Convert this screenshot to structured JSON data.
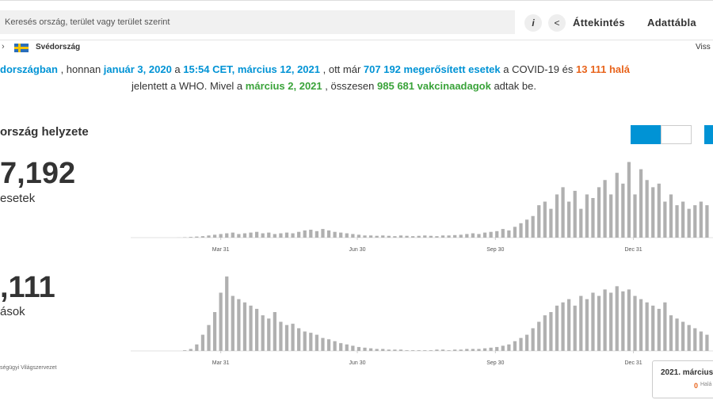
{
  "search": {
    "placeholder": "Keresés ország, terület vagy terület szerint"
  },
  "nav": {
    "overview": "Áttekintés",
    "table": "Adattábla",
    "back": "Viss"
  },
  "breadcrumb": {
    "country": "Svédország"
  },
  "summary": {
    "line1": [
      {
        "text": "dországban",
        "color": "#0093d5"
      },
      {
        "text": " , honnan ",
        "color": "#333333"
      },
      {
        "text": "január 3, 2020",
        "color": "#0093d5"
      },
      {
        "text": " a ",
        "color": "#333333"
      },
      {
        "text": "15:54 CET, március 12, 2021",
        "color": "#0093d5"
      },
      {
        "text": " , ott már ",
        "color": "#333333"
      },
      {
        "text": "707 192 megerősített esetek",
        "color": "#0093d5"
      },
      {
        "text": " a COVID-19 és ",
        "color": "#333333"
      },
      {
        "text": "13 111 halá",
        "color": "#e8641c"
      }
    ],
    "line2": [
      {
        "text": "jelentett a WHO. Mivel a ",
        "color": "#333333"
      },
      {
        "text": "március 2, 2021",
        "color": "#3aa33a"
      },
      {
        "text": " , összesen ",
        "color": "#333333"
      },
      {
        "text": "985 681 vakcinaadagok",
        "color": "#3aa33a"
      },
      {
        "text": " adtak be.",
        "color": "#333333"
      }
    ]
  },
  "panel": {
    "title": "ország helyzete",
    "cases_total": "7,192",
    "cases_label": "esetek",
    "deaths_total": ",111",
    "deaths_label": "ások",
    "source": "ségügyi Világszervezet",
    "tooltip_date": "2021. március",
    "tooltip_value": "0",
    "tooltip_label": "Halá"
  },
  "chart_data": [
    {
      "type": "bar",
      "color": "#b0b0b0",
      "xlim": [
        -7,
        90
      ],
      "ylim": [
        0,
        11000
      ],
      "xticks": [
        {
          "value": 8,
          "label": "Mar 31"
        },
        {
          "value": 30.75,
          "label": "Jun 30"
        },
        {
          "value": 53.75,
          "label": "Sep 30"
        },
        {
          "value": 76.75,
          "label": "Dec 31"
        }
      ],
      "values": [
        0,
        10,
        50,
        100,
        150,
        200,
        300,
        400,
        500,
        600,
        700,
        500,
        600,
        700,
        800,
        600,
        700,
        500,
        600,
        700,
        600,
        800,
        1000,
        1100,
        900,
        1200,
        1000,
        800,
        700,
        600,
        500,
        400,
        300,
        300,
        250,
        300,
        250,
        200,
        300,
        250,
        200,
        250,
        300,
        250,
        200,
        300,
        300,
        350,
        400,
        500,
        600,
        500,
        700,
        800,
        900,
        1200,
        1000,
        1500,
        2000,
        2500,
        3000,
        4500,
        5000,
        4000,
        6000,
        7000,
        5000,
        6500,
        4000,
        6000,
        5500,
        7000,
        8000,
        6000,
        9000,
        7500,
        10500,
        6000,
        9500,
        8000,
        7000,
        7500,
        5000,
        6000,
        4500,
        5000,
        4000,
        4500,
        5000,
        4500
      ]
    },
    {
      "type": "bar",
      "color": "#b0b0b0",
      "xlim": [
        -7,
        90
      ],
      "ylim": [
        0,
        120
      ],
      "xticks": [
        {
          "value": 8,
          "label": "Mar 31"
        },
        {
          "value": 30.75,
          "label": "Jun 30"
        },
        {
          "value": 53.75,
          "label": "Sep 30"
        },
        {
          "value": 76.75,
          "label": "Dec 31"
        }
      ],
      "values": [
        0,
        0,
        1,
        3,
        10,
        25,
        40,
        60,
        90,
        115,
        85,
        80,
        75,
        70,
        65,
        55,
        50,
        60,
        45,
        40,
        42,
        35,
        30,
        28,
        25,
        20,
        18,
        15,
        12,
        10,
        8,
        6,
        5,
        4,
        3,
        3,
        2,
        2,
        2,
        1,
        1,
        1,
        1,
        1,
        2,
        2,
        1,
        2,
        2,
        3,
        3,
        3,
        4,
        5,
        6,
        8,
        10,
        15,
        20,
        25,
        35,
        45,
        55,
        60,
        70,
        75,
        80,
        70,
        85,
        80,
        90,
        85,
        95,
        90,
        100,
        92,
        95,
        85,
        80,
        75,
        70,
        65,
        75,
        55,
        50,
        45,
        40,
        35,
        30,
        25
      ]
    }
  ]
}
